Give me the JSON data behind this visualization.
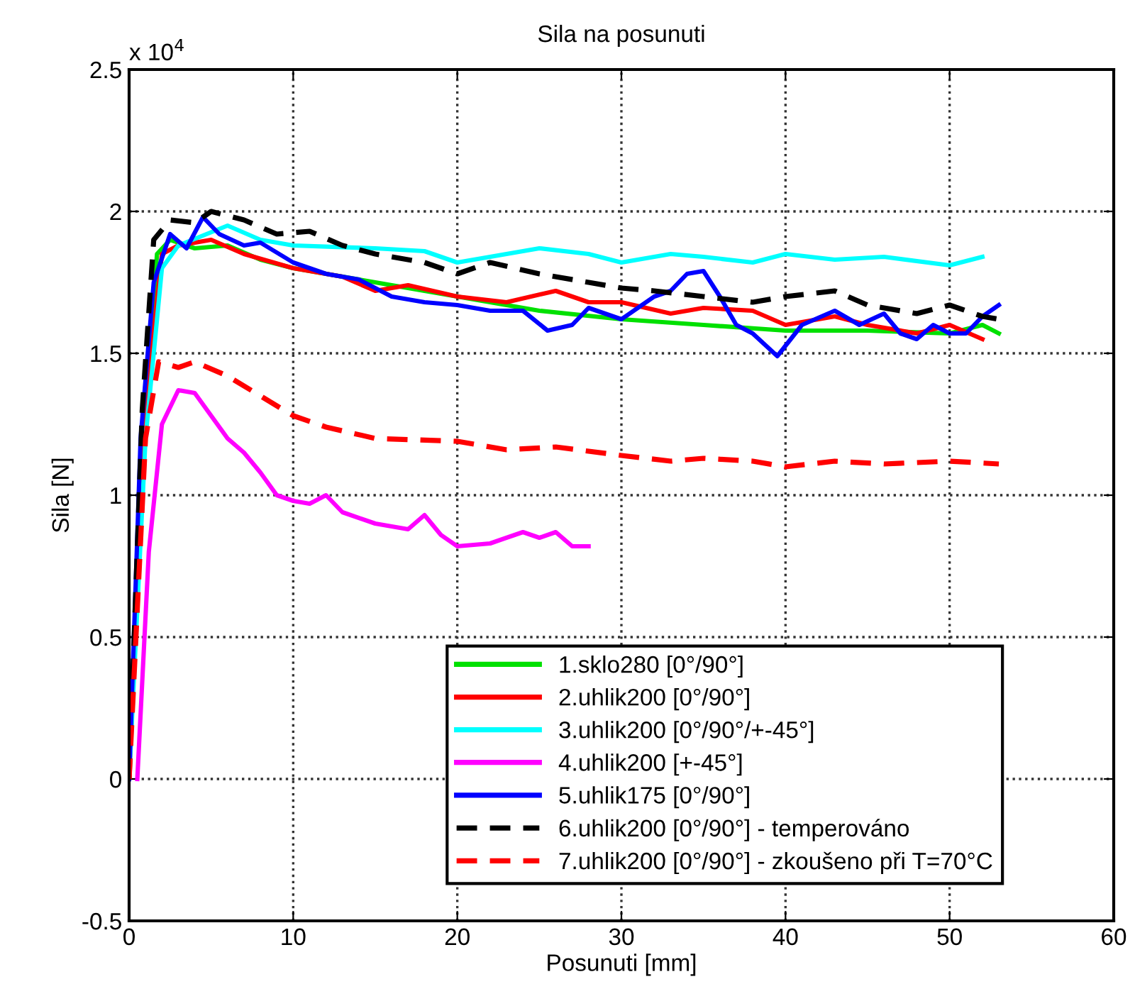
{
  "chart_data": {
    "type": "line",
    "title": "Sila na posunuti",
    "xlabel": "Posunuti [mm]",
    "ylabel": "Sila [N]",
    "annotations": [
      "x 10$^{4}$"
    ],
    "xlim": [
      0,
      60
    ],
    "xticks": [
      0,
      10,
      20,
      30,
      40,
      50,
      60
    ],
    "ylim": [
      -0.5,
      2.5
    ],
    "yticks": [
      {
        "value": -0.5,
        "label": "-0.5"
      },
      0,
      0.5,
      1,
      1.5,
      2,
      2.5
    ],
    "grid": true,
    "legend": "bottom",
    "marker": "none",
    "series": [
      {
        "name": "1.sklo280 [0°/90°]",
        "color": "#00e000",
        "x": [
          1,
          1.7,
          2.5,
          4,
          6,
          8,
          10,
          15,
          20,
          25,
          30,
          35,
          40,
          45,
          50,
          52,
          53
        ],
        "values": [
          1.3,
          1.85,
          1.9,
          1.87,
          1.88,
          1.83,
          1.8,
          1.75,
          1.7,
          1.65,
          1.62,
          1.6,
          1.58,
          1.58,
          1.57,
          1.6,
          1.57
        ]
      },
      {
        "name": "2.uhlik200 [0°/90°]",
        "color": "#ff0000",
        "x": [
          0,
          1,
          2,
          3,
          5,
          7,
          10,
          13,
          15,
          17,
          20,
          23,
          26,
          28,
          30,
          33,
          35,
          38,
          40,
          43,
          45,
          48,
          50,
          52
        ],
        "values": [
          0,
          1.3,
          1.85,
          1.88,
          1.9,
          1.85,
          1.8,
          1.77,
          1.72,
          1.74,
          1.7,
          1.68,
          1.72,
          1.68,
          1.68,
          1.64,
          1.66,
          1.65,
          1.6,
          1.63,
          1.6,
          1.57,
          1.6,
          1.55
        ]
      },
      {
        "name": "3.uhlik200 [0°/90°/+-45°]",
        "color": "#00ffff",
        "x": [
          0,
          1,
          2,
          3,
          6,
          8,
          10,
          15,
          18,
          20,
          22,
          25,
          28,
          30,
          33,
          35,
          38,
          40,
          43,
          46,
          50,
          52
        ],
        "values": [
          0,
          1.2,
          1.8,
          1.88,
          1.95,
          1.9,
          1.88,
          1.87,
          1.86,
          1.82,
          1.84,
          1.87,
          1.85,
          1.82,
          1.85,
          1.84,
          1.82,
          1.85,
          1.83,
          1.84,
          1.81,
          1.84
        ]
      },
      {
        "name": "4.uhlik200 [+-45°]",
        "color": "#ff00ff",
        "x": [
          0.5,
          1.2,
          2,
          3,
          4,
          5,
          6,
          7,
          8,
          9,
          10,
          11,
          12,
          13,
          15,
          17,
          18,
          19,
          20,
          22,
          24,
          25,
          26,
          27,
          28
        ],
        "values": [
          0,
          0.8,
          1.25,
          1.37,
          1.36,
          1.28,
          1.2,
          1.15,
          1.08,
          1.0,
          0.98,
          0.97,
          1.0,
          0.94,
          0.9,
          0.88,
          0.93,
          0.86,
          0.82,
          0.83,
          0.87,
          0.85,
          0.87,
          0.82,
          0.82
        ]
      },
      {
        "name": "5.uhlik175 [0°/90°]",
        "color": "#0000ff",
        "x": [
          0,
          0.7,
          1.5,
          2.5,
          3.5,
          4.5,
          5.5,
          7,
          8,
          10,
          12,
          14,
          16,
          18,
          20,
          22,
          24,
          25.5,
          27,
          28,
          30,
          32,
          33,
          34,
          35,
          36,
          37,
          38,
          39.5,
          41,
          43,
          44.5,
          46,
          47,
          48,
          49,
          50,
          51,
          52,
          53
        ],
        "values": [
          0,
          1.2,
          1.75,
          1.92,
          1.87,
          1.98,
          1.92,
          1.88,
          1.89,
          1.82,
          1.78,
          1.76,
          1.7,
          1.68,
          1.67,
          1.65,
          1.65,
          1.58,
          1.6,
          1.66,
          1.62,
          1.7,
          1.72,
          1.78,
          1.79,
          1.7,
          1.6,
          1.57,
          1.49,
          1.6,
          1.65,
          1.6,
          1.64,
          1.57,
          1.55,
          1.6,
          1.57,
          1.57,
          1.63,
          1.67
        ]
      },
      {
        "name": "6.uhlik200 [0°/90°] - temperováno",
        "color": "#000000",
        "line_style": "dashed",
        "x": [
          0,
          0.8,
          1.5,
          2.5,
          4,
          5,
          7,
          9,
          11,
          13,
          15,
          18,
          20,
          22,
          25,
          28,
          30,
          32,
          35,
          38,
          40,
          43,
          45,
          48,
          50,
          52,
          53
        ],
        "values": [
          0,
          1.3,
          1.9,
          1.97,
          1.96,
          2.0,
          1.97,
          1.92,
          1.93,
          1.88,
          1.85,
          1.82,
          1.78,
          1.82,
          1.78,
          1.75,
          1.73,
          1.72,
          1.7,
          1.68,
          1.7,
          1.72,
          1.67,
          1.64,
          1.67,
          1.63,
          1.62
        ]
      },
      {
        "name": "7.uhlik200 [0°/90°] - zkoušeno při T=70°C",
        "color": "#ff0000",
        "line_style": "dashed",
        "x": [
          0,
          1,
          1.8,
          3,
          4,
          6,
          8,
          10,
          12,
          15,
          20,
          23,
          26,
          30,
          33,
          35,
          38,
          40,
          43,
          46,
          50,
          53
        ],
        "values": [
          0,
          1.2,
          1.47,
          1.45,
          1.47,
          1.42,
          1.35,
          1.28,
          1.24,
          1.2,
          1.19,
          1.16,
          1.17,
          1.14,
          1.12,
          1.13,
          1.12,
          1.1,
          1.12,
          1.11,
          1.12,
          1.11
        ]
      }
    ]
  }
}
